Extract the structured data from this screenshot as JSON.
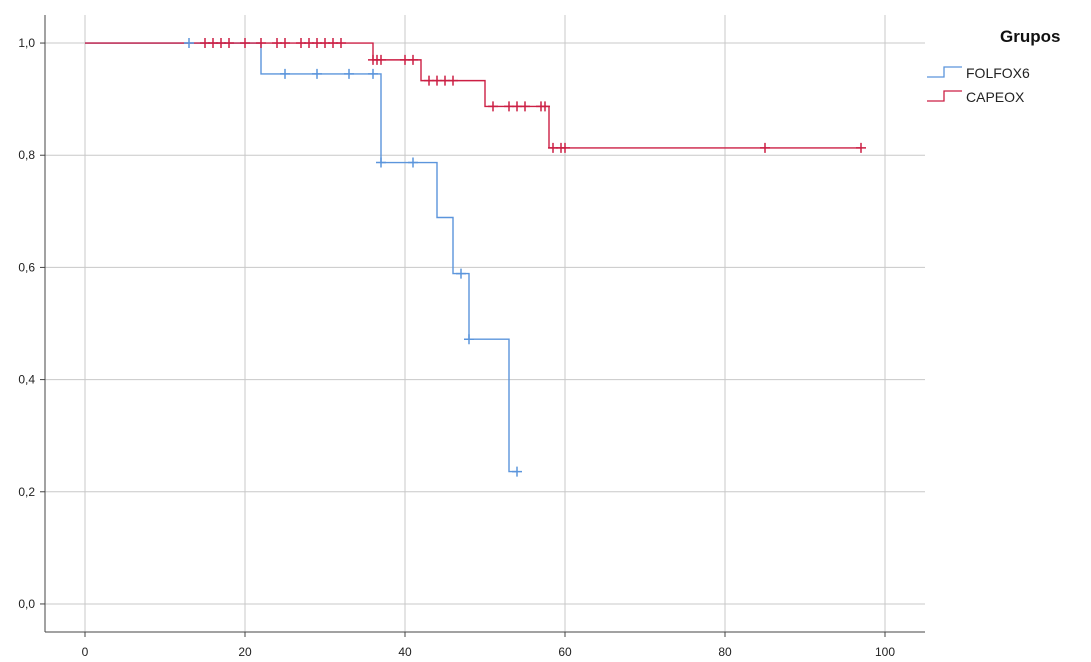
{
  "chart_data": {
    "type": "line",
    "subtype": "kaplan-meier-step",
    "title": "",
    "xlabel": "",
    "ylabel": "",
    "xlim": [
      -5,
      105
    ],
    "ylim": [
      -0.05,
      1.05
    ],
    "x_ticks": [
      0,
      20,
      40,
      60,
      80,
      100
    ],
    "x_tick_labels": [
      "0",
      "20",
      "40",
      "60",
      "80",
      "100"
    ],
    "y_ticks": [
      0.0,
      0.2,
      0.4,
      0.6,
      0.8,
      1.0
    ],
    "y_tick_labels": [
      "0,0",
      "0,2",
      "0,4",
      "0,6",
      "0,8",
      "1,0"
    ],
    "grid": true,
    "legend": {
      "title": "Grupos",
      "placement": "top-right",
      "entries": [
        "FOLFOX6",
        "CAPEOX"
      ]
    },
    "series": [
      {
        "name": "FOLFOX6",
        "color": "#5b95dc",
        "steps": [
          {
            "x": 0,
            "y": 1.0
          },
          {
            "x": 22,
            "y": 0.945
          },
          {
            "x": 37,
            "y": 0.787
          },
          {
            "x": 44,
            "y": 0.689
          },
          {
            "x": 46,
            "y": 0.589
          },
          {
            "x": 48,
            "y": 0.472
          },
          {
            "x": 53,
            "y": 0.236
          }
        ],
        "end_x": 54,
        "censored": [
          {
            "x": 13,
            "y": 1.0
          },
          {
            "x": 25,
            "y": 0.945
          },
          {
            "x": 29,
            "y": 0.945
          },
          {
            "x": 33,
            "y": 0.945
          },
          {
            "x": 36,
            "y": 0.945
          },
          {
            "x": 37,
            "y": 0.787
          },
          {
            "x": 41,
            "y": 0.787
          },
          {
            "x": 47,
            "y": 0.589
          },
          {
            "x": 48,
            "y": 0.472
          },
          {
            "x": 54,
            "y": 0.236
          }
        ]
      },
      {
        "name": "CAPEOX",
        "color": "#cc1f44",
        "steps": [
          {
            "x": 0,
            "y": 1.0
          },
          {
            "x": 36,
            "y": 0.97
          },
          {
            "x": 42,
            "y": 0.933
          },
          {
            "x": 50,
            "y": 0.887
          },
          {
            "x": 58,
            "y": 0.813
          }
        ],
        "end_x": 97,
        "censored": [
          {
            "x": 15,
            "y": 1.0
          },
          {
            "x": 16,
            "y": 1.0
          },
          {
            "x": 17,
            "y": 1.0
          },
          {
            "x": 18,
            "y": 1.0
          },
          {
            "x": 20,
            "y": 1.0
          },
          {
            "x": 22,
            "y": 1.0
          },
          {
            "x": 24,
            "y": 1.0
          },
          {
            "x": 25,
            "y": 1.0
          },
          {
            "x": 27,
            "y": 1.0
          },
          {
            "x": 28,
            "y": 1.0
          },
          {
            "x": 29,
            "y": 1.0
          },
          {
            "x": 30,
            "y": 1.0
          },
          {
            "x": 31,
            "y": 1.0
          },
          {
            "x": 32,
            "y": 1.0
          },
          {
            "x": 36,
            "y": 0.97
          },
          {
            "x": 36.5,
            "y": 0.97
          },
          {
            "x": 37,
            "y": 0.97
          },
          {
            "x": 40,
            "y": 0.97
          },
          {
            "x": 41,
            "y": 0.97
          },
          {
            "x": 43,
            "y": 0.933
          },
          {
            "x": 44,
            "y": 0.933
          },
          {
            "x": 45,
            "y": 0.933
          },
          {
            "x": 46,
            "y": 0.933
          },
          {
            "x": 51,
            "y": 0.887
          },
          {
            "x": 53,
            "y": 0.887
          },
          {
            "x": 54,
            "y": 0.887
          },
          {
            "x": 55,
            "y": 0.887
          },
          {
            "x": 57,
            "y": 0.887
          },
          {
            "x": 57.5,
            "y": 0.887
          },
          {
            "x": 58.5,
            "y": 0.813
          },
          {
            "x": 59.5,
            "y": 0.813
          },
          {
            "x": 60,
            "y": 0.813
          },
          {
            "x": 85,
            "y": 0.813
          },
          {
            "x": 97,
            "y": 0.813
          }
        ]
      }
    ]
  }
}
